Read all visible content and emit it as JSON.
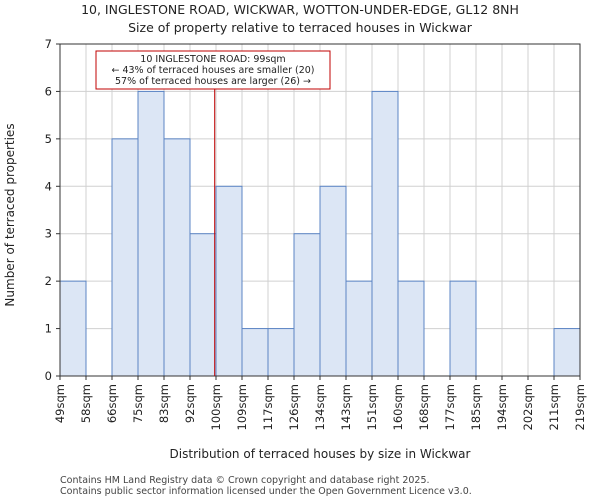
{
  "title_line1": "10, INGLESTONE ROAD, WICKWAR, WOTTON-UNDER-EDGE, GL12 8NH",
  "title_line2": "Size of property relative to terraced houses in Wickwar",
  "footer_line1": "Contains HM Land Registry data © Crown copyright and database right 2025.",
  "footer_line2": "Contains public sector information licensed under the Open Government Licence v3.0.",
  "chart_data": {
    "type": "bar",
    "xlabel": "Distribution of terraced houses by size in Wickwar",
    "ylabel": "Number of terraced properties",
    "ylim": [
      0,
      7
    ],
    "yticks": [
      0,
      1,
      2,
      3,
      4,
      5,
      6,
      7
    ],
    "grid": true,
    "bin_edges": [
      "49sqm",
      "58sqm",
      "66sqm",
      "75sqm",
      "83sqm",
      "92sqm",
      "100sqm",
      "109sqm",
      "117sqm",
      "126sqm",
      "134sqm",
      "143sqm",
      "151sqm",
      "160sqm",
      "168sqm",
      "177sqm",
      "185sqm",
      "194sqm",
      "202sqm",
      "211sqm",
      "219sqm"
    ],
    "values": [
      2,
      0,
      5,
      6,
      5,
      3,
      4,
      1,
      1,
      3,
      4,
      2,
      6,
      2,
      0,
      2,
      0,
      0,
      0,
      1
    ],
    "bar_color": "#dce6f5",
    "bar_edge_color": "#5b84c4",
    "marker": {
      "bin_position": 5.95,
      "color": "#c00000",
      "label_line1": "10 INGLESTONE ROAD: 99sqm",
      "label_line2": "← 43% of terraced houses are smaller (20)",
      "label_line3": "57% of terraced houses are larger (26) →"
    }
  }
}
